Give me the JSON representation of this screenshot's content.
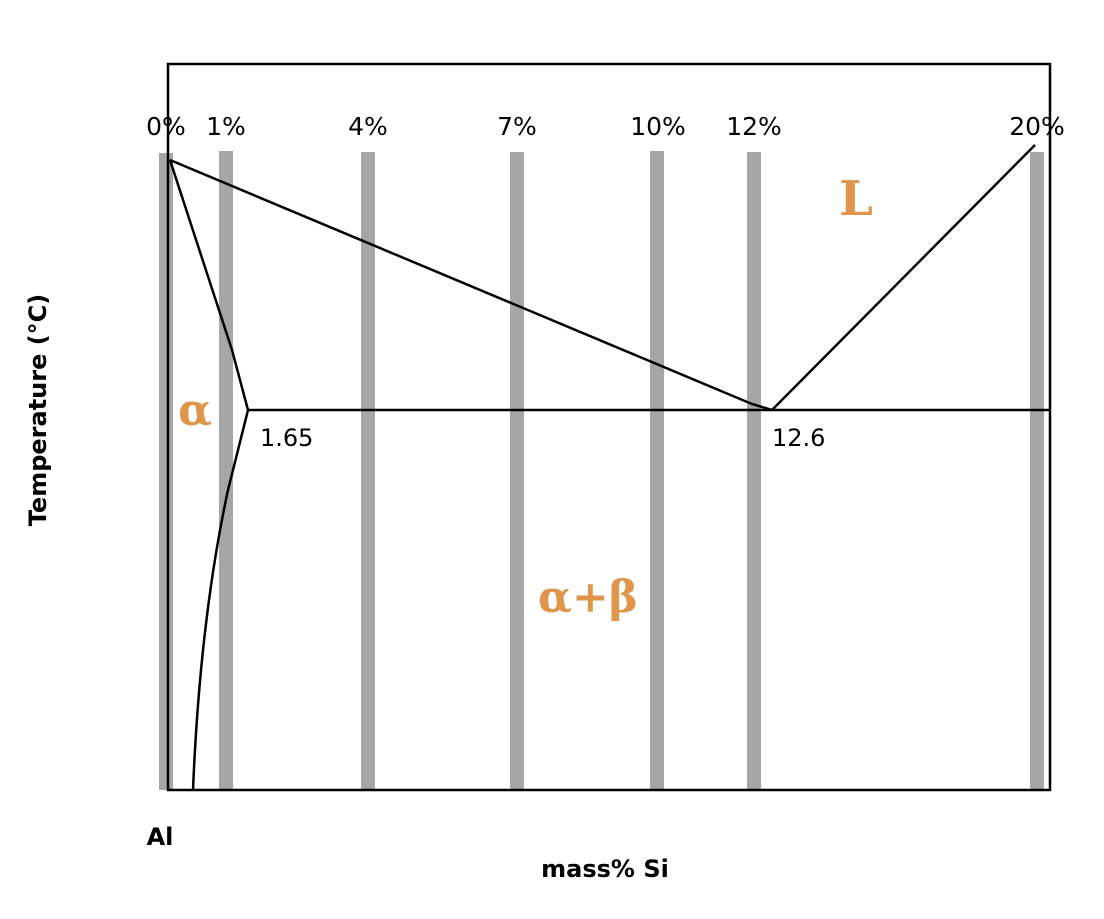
{
  "axes": {
    "y_title": "Temperature (°C)",
    "x_title": "mass% Si",
    "origin_label": "Al"
  },
  "compositions": [
    "0%",
    "1%",
    "4%",
    "7%",
    "10%",
    "12%",
    "20%"
  ],
  "phases": {
    "liquid": "L",
    "alpha": "α",
    "alpha_beta": "α+β"
  },
  "points": {
    "solubility": "1.65",
    "eutectic": "12.6"
  }
}
